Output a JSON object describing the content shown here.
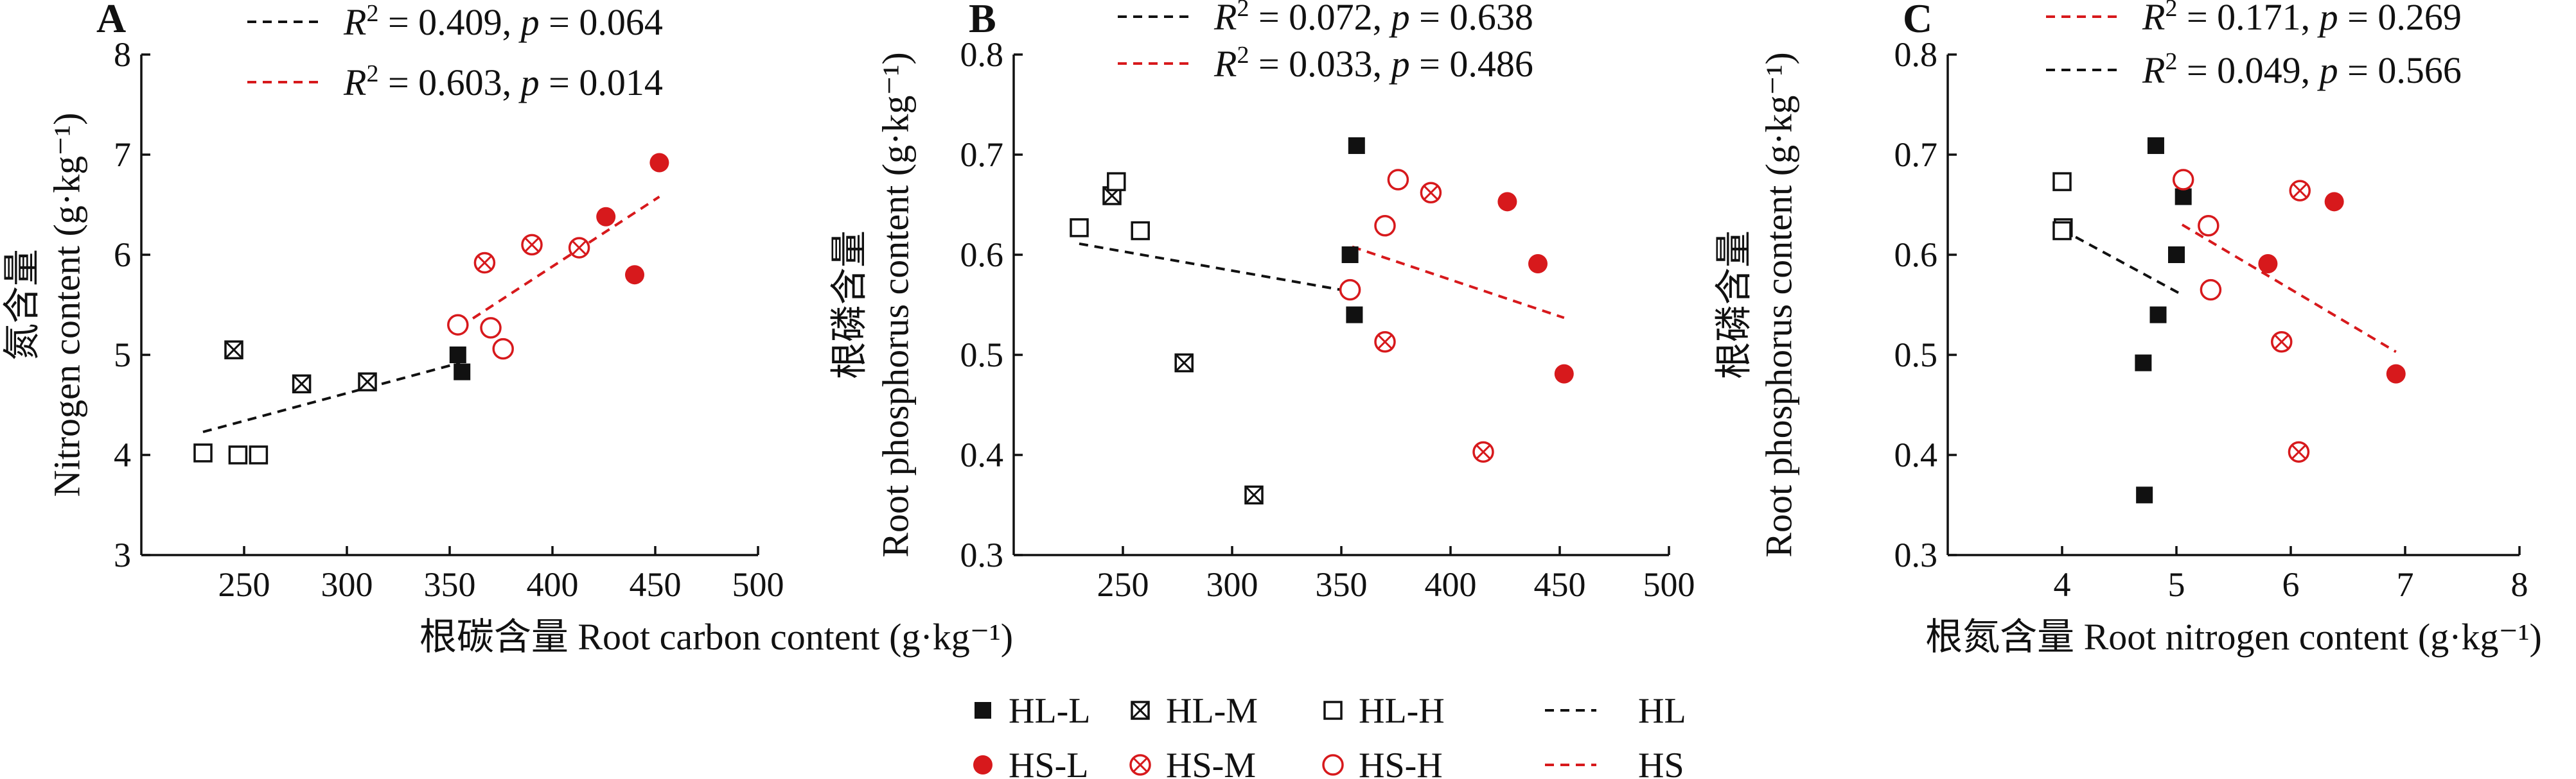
{
  "colors": {
    "HL": "#111111",
    "HS": "#d7191c"
  },
  "legend": [
    {
      "key": "HL-L",
      "label": "HL-L",
      "marker": "filled-square",
      "color": "#111111"
    },
    {
      "key": "HL-M",
      "label": "HL-M",
      "marker": "crossed-square",
      "color": "#111111"
    },
    {
      "key": "HL-H",
      "label": "HL-H",
      "marker": "open-square",
      "color": "#111111"
    },
    {
      "key": "HL",
      "label": "HL",
      "marker": "dashed-line",
      "color": "#111111"
    },
    {
      "key": "HS-L",
      "label": "HS-L",
      "marker": "filled-circle",
      "color": "#d7191c"
    },
    {
      "key": "HS-M",
      "label": "HS-M",
      "marker": "crossed-circle",
      "color": "#d7191c"
    },
    {
      "key": "HS-H",
      "label": "HS-H",
      "marker": "open-circle",
      "color": "#d7191c"
    },
    {
      "key": "HS",
      "label": "HS",
      "marker": "dashed-line",
      "color": "#d7191c"
    }
  ],
  "chart_data": [
    {
      "type": "scatter",
      "panel_label": "A",
      "xlabel": "根碳含量 Root carbon content (g·kg⁻¹)",
      "ylabel_cn": "氮含量",
      "ylabel_en": "Nitrogen content (g·kg⁻¹)",
      "xlim": [
        200,
        500
      ],
      "ylim": [
        3,
        8
      ],
      "xticks": [
        250,
        300,
        350,
        400,
        450,
        500
      ],
      "yticks": [
        3,
        4,
        5,
        6,
        7,
        8
      ],
      "fits": [
        {
          "group": "HL",
          "r2": "0.409",
          "p": "0.064",
          "x": [
            230,
            355
          ],
          "y": [
            4.23,
            4.92
          ]
        },
        {
          "group": "HS",
          "r2": "0.603",
          "p": "0.014",
          "x": [
            355,
            452
          ],
          "y": [
            5.28,
            6.58
          ]
        }
      ],
      "series": [
        {
          "name": "HL-L",
          "points": [
            [
              354,
              5.0
            ],
            [
              356,
              4.83
            ]
          ]
        },
        {
          "name": "HL-M",
          "points": [
            [
              245,
              5.05
            ],
            [
              278,
              4.71
            ],
            [
              310,
              4.73
            ]
          ]
        },
        {
          "name": "HL-H",
          "points": [
            [
              230,
              4.02
            ],
            [
              247,
              4.0
            ],
            [
              257,
              4.0
            ]
          ]
        },
        {
          "name": "HS-L",
          "points": [
            [
              426,
              6.38
            ],
            [
              440,
              5.8
            ],
            [
              452,
              6.92
            ]
          ]
        },
        {
          "name": "HS-M",
          "points": [
            [
              367,
              5.92
            ],
            [
              390,
              6.1
            ],
            [
              413,
              6.07
            ]
          ]
        },
        {
          "name": "HS-H",
          "points": [
            [
              354,
              5.3
            ],
            [
              370,
              5.27
            ],
            [
              376,
              5.06
            ]
          ]
        }
      ]
    },
    {
      "type": "scatter",
      "panel_label": "B",
      "xlabel": "",
      "ylabel_cn": "根磷含量",
      "ylabel_en": "Root phosphorus content (g·kg⁻¹)",
      "xlim": [
        200,
        500
      ],
      "ylim": [
        0.3,
        0.8
      ],
      "xticks": [
        250,
        300,
        350,
        400,
        450,
        500
      ],
      "yticks": [
        0.3,
        0.4,
        0.5,
        0.6,
        0.7,
        0.8
      ],
      "fits": [
        {
          "group": "HL",
          "r2": "0.072",
          "p": "0.638",
          "x": [
            230,
            355
          ],
          "y": [
            0.611,
            0.563
          ]
        },
        {
          "group": "HS",
          "r2": "0.033",
          "p": "0.486",
          "x": [
            355,
            452
          ],
          "y": [
            0.608,
            0.537
          ]
        }
      ],
      "series": [
        {
          "name": "HL-L",
          "points": [
            [
              354,
              0.6
            ],
            [
              356,
              0.54
            ],
            [
              357,
              0.709
            ]
          ]
        },
        {
          "name": "HL-M",
          "points": [
            [
              245,
              0.659
            ],
            [
              278,
              0.492
            ],
            [
              310,
              0.36
            ]
          ]
        },
        {
          "name": "HL-H",
          "points": [
            [
              230,
              0.627
            ],
            [
              247,
              0.673
            ],
            [
              258,
              0.624
            ]
          ]
        },
        {
          "name": "HS-L",
          "points": [
            [
              426,
              0.653
            ],
            [
              440,
              0.591
            ],
            [
              452,
              0.481
            ]
          ]
        },
        {
          "name": "HS-M",
          "points": [
            [
              370,
              0.513
            ],
            [
              391,
              0.662
            ],
            [
              415,
              0.403
            ]
          ]
        },
        {
          "name": "HS-H",
          "points": [
            [
              354,
              0.565
            ],
            [
              370,
              0.629
            ],
            [
              376,
              0.675
            ]
          ]
        }
      ]
    },
    {
      "type": "scatter",
      "panel_label": "C",
      "xlabel": "根氮含量 Root nitrogen content (g·kg⁻¹)",
      "ylabel_cn": "根磷含量",
      "ylabel_en": "Root phosphorus content (g·kg⁻¹)",
      "xlim": [
        3,
        8
      ],
      "ylim": [
        0.3,
        0.8
      ],
      "xticks": [
        4,
        5,
        6,
        7,
        8
      ],
      "yticks": [
        0.3,
        0.4,
        0.5,
        0.6,
        0.7,
        0.8
      ],
      "fits": [
        {
          "group": "HS",
          "r2": "0.171",
          "p": "0.269",
          "x": [
            5.05,
            6.92
          ],
          "y": [
            0.63,
            0.503
          ]
        },
        {
          "group": "HL",
          "r2": "0.049",
          "p": "0.566",
          "x": [
            4.0,
            5.05
          ],
          "y": [
            0.625,
            0.56
          ]
        }
      ],
      "series": [
        {
          "name": "HL-L",
          "points": [
            [
              4.82,
              0.709
            ],
            [
              5.06,
              0.658
            ],
            [
              5.0,
              0.6
            ],
            [
              4.84,
              0.54
            ],
            [
              4.71,
              0.492
            ],
            [
              4.72,
              0.36
            ]
          ]
        },
        {
          "name": "HL-M",
          "points": []
        },
        {
          "name": "HL-H",
          "points": [
            [
              4.0,
              0.673
            ],
            [
              4.01,
              0.627
            ],
            [
              4.0,
              0.624
            ]
          ]
        },
        {
          "name": "HS-L",
          "points": [
            [
              6.38,
              0.653
            ],
            [
              5.8,
              0.591
            ],
            [
              6.92,
              0.481
            ]
          ]
        },
        {
          "name": "HS-M",
          "points": [
            [
              6.08,
              0.664
            ],
            [
              5.92,
              0.513
            ],
            [
              6.07,
              0.403
            ]
          ]
        },
        {
          "name": "HS-H",
          "points": [
            [
              5.06,
              0.675
            ],
            [
              5.28,
              0.629
            ],
            [
              5.3,
              0.565
            ]
          ]
        }
      ]
    }
  ]
}
